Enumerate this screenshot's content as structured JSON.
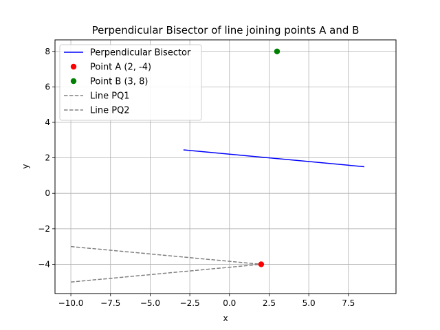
{
  "chart_data": {
    "type": "scatter",
    "title": "Perpendicular Bisector of line joining points A and B",
    "xlabel": "x",
    "ylabel": "y",
    "xlim": [
      -11.0,
      10.5
    ],
    "ylim": [
      -5.65,
      8.65
    ],
    "x_ticks": [
      -10.0,
      -7.5,
      -5.0,
      -2.5,
      0.0,
      2.5,
      5.0,
      7.5
    ],
    "x_tick_labels": [
      "−10.0",
      "−7.5",
      "−5.0",
      "−2.5",
      "0.0",
      "2.5",
      "5.0",
      "7.5"
    ],
    "y_ticks": [
      -4,
      -2,
      0,
      2,
      4,
      6,
      8
    ],
    "y_tick_labels": [
      "−4",
      "−2",
      "0",
      "2",
      "4",
      "6",
      "8"
    ],
    "grid": true,
    "legend_position": "top-left",
    "series": [
      {
        "name": "Perpendicular Bisector",
        "kind": "line",
        "style": "solid",
        "color": "#0000ff",
        "x": [
          -2.9,
          8.5
        ],
        "y": [
          2.45,
          1.5
        ]
      },
      {
        "name": "Point A (2, -4)",
        "kind": "point",
        "color": "#ff0000",
        "x": [
          2
        ],
        "y": [
          -4
        ]
      },
      {
        "name": "Point B (3, 8)",
        "kind": "point",
        "color": "#008000",
        "x": [
          3
        ],
        "y": [
          8
        ]
      },
      {
        "name": "Line PQ1",
        "kind": "line",
        "style": "dashed",
        "color": "#808080",
        "x": [
          -10,
          2
        ],
        "y": [
          -3,
          -4
        ]
      },
      {
        "name": "Line PQ2",
        "kind": "line",
        "style": "dashed",
        "color": "#808080",
        "x": [
          -10,
          2
        ],
        "y": [
          -5,
          -4
        ]
      }
    ]
  }
}
